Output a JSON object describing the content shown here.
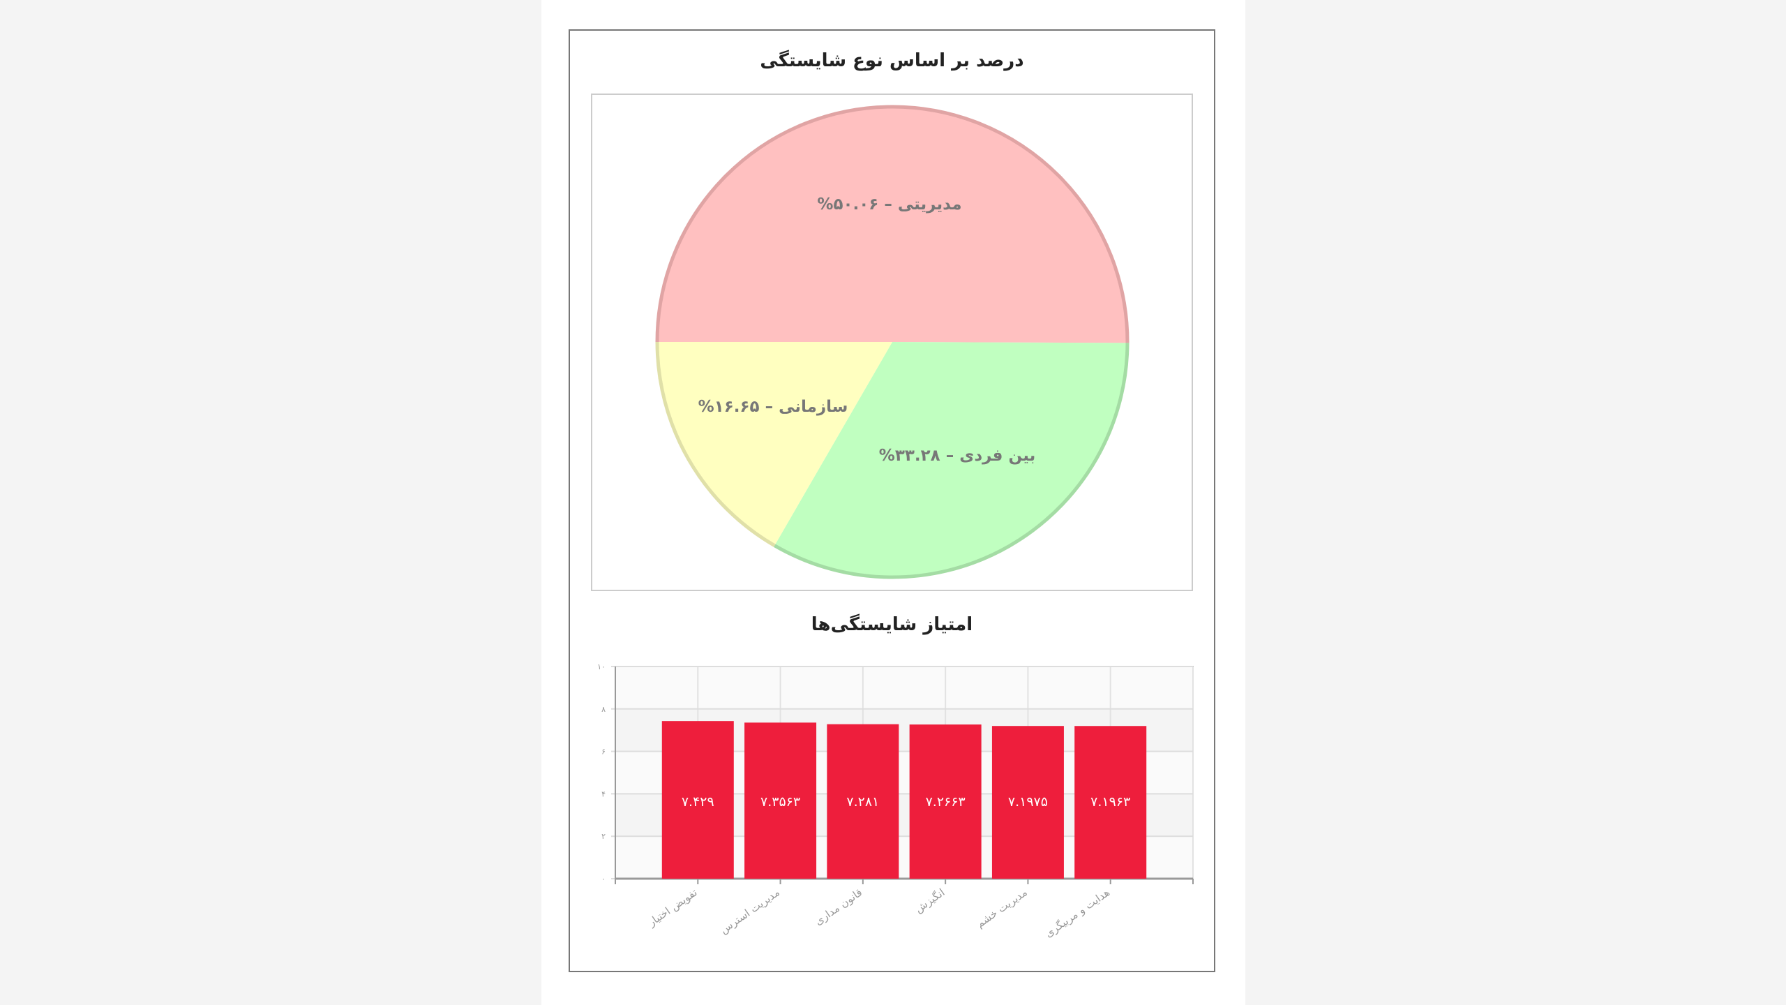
{
  "chart_data": [
    {
      "type": "pie",
      "title": "درصد بر اساس نوع شایستگی",
      "slices": [
        {
          "label": "مدیریتی",
          "value": 50.06,
          "text": "مدیریتی – ۵۰.۰۶%",
          "color": "#ffc0c0",
          "stroke": "#e0a4a4"
        },
        {
          "label": "بین فردی",
          "value": 33.28,
          "text": "بین فردی – ۳۳.۲۸%",
          "color": "#c0ffc0",
          "stroke": "#a4dca4"
        },
        {
          "label": "سازمانی",
          "value": 16.65,
          "text": "سازمانی – ۱۶.۶۵%",
          "color": "#ffffc0",
          "stroke": "#e0e0a8"
        }
      ]
    },
    {
      "type": "bar",
      "title": "امتیاز شایستگی‌ها",
      "categories": [
        "تفویض اختیار",
        "مدیریت استرس",
        "قانون مداری",
        "انگیزش",
        "مدیریت خشم",
        "هدایت و مربیگری"
      ],
      "values": [
        7.429,
        7.3563,
        7.281,
        7.2663,
        7.1975,
        7.1963
      ],
      "value_labels": [
        "۷.۴۲۹",
        "۷.۳۵۶۳",
        "۷.۲۸۱",
        "۷.۲۶۶۳",
        "۷.۱۹۷۵",
        "۷.۱۹۶۳"
      ],
      "ylim": [
        0,
        10
      ],
      "yticks": [
        0,
        2,
        4,
        6,
        8,
        10
      ],
      "ytick_labels": [
        "۰",
        "۲",
        "۴",
        "۶",
        "۸",
        "۱۰"
      ],
      "grid": true,
      "bar_color": "#ee1e3c"
    }
  ]
}
